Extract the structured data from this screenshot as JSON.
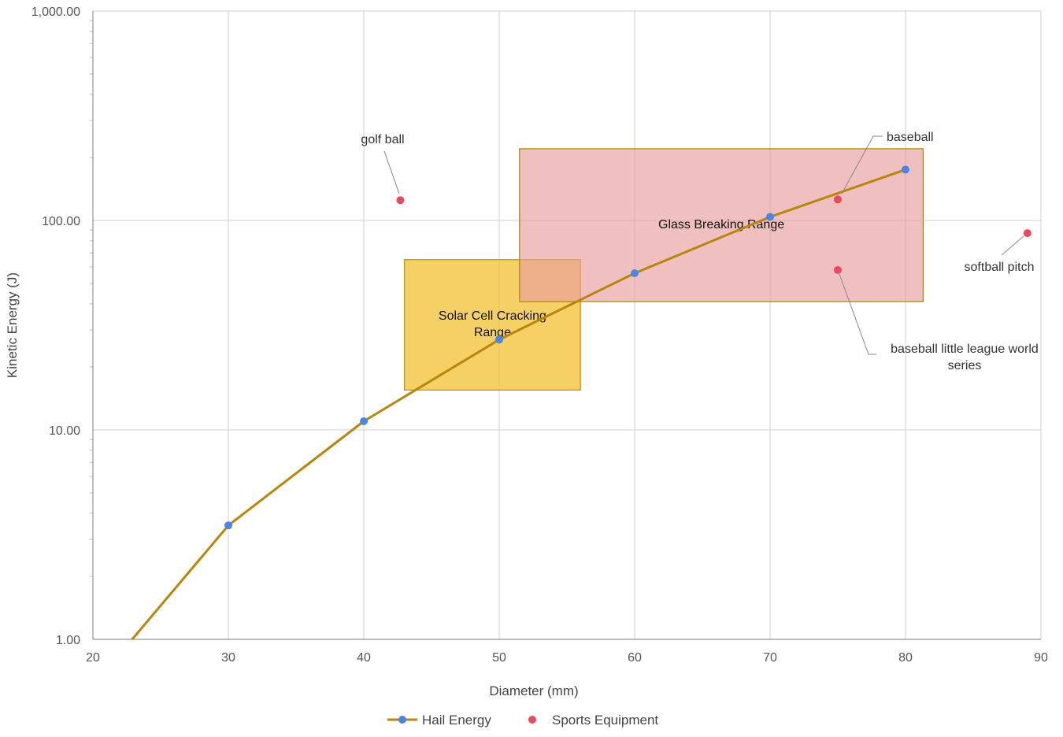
{
  "chart_data": {
    "type": "line",
    "xlabel": "Diameter (mm)",
    "ylabel": "Kinetic Energy (J)",
    "xlim": [
      20,
      90
    ],
    "ylim": [
      1,
      1000
    ],
    "yscale": "log",
    "grid": true,
    "x_ticks": [
      "20",
      "30",
      "40",
      "50",
      "60",
      "70",
      "80",
      "90"
    ],
    "y_ticks": [
      "1.00",
      "10.00",
      "100.00",
      "1,000.00"
    ],
    "series": [
      {
        "name": "Hail Energy",
        "type": "line",
        "color": "#b8860b",
        "marker_color": "#4a86e8",
        "points": [
          {
            "x": 20,
            "y": 0.6
          },
          {
            "x": 30,
            "y": 3.5
          },
          {
            "x": 40,
            "y": 11
          },
          {
            "x": 50,
            "y": 27
          },
          {
            "x": 60,
            "y": 56
          },
          {
            "x": 70,
            "y": 104
          },
          {
            "x": 80,
            "y": 175
          }
        ]
      },
      {
        "name": "Sports Equipment",
        "type": "scatter",
        "color": "#e84a5f",
        "points": [
          {
            "x": 42.7,
            "y": 125
          },
          {
            "x": 75,
            "y": 126
          },
          {
            "x": 75,
            "y": 58
          },
          {
            "x": 89,
            "y": 87
          }
        ]
      }
    ],
    "regions": [
      {
        "label": "Solar Cell Cracking Range",
        "lines": [
          "Solar Cell Cracking",
          "Range"
        ],
        "x": [
          43,
          56
        ],
        "y": [
          15.5,
          65
        ],
        "fill": "#f1c232",
        "border": "#c69214",
        "opacity": 0.75
      },
      {
        "label": "Glass Breaking Range",
        "lines": [
          "Glass Breaking Range"
        ],
        "x": [
          51.5,
          81.3
        ],
        "y": [
          41,
          220
        ],
        "fill": "#e89e9e",
        "border": "#b8860b",
        "opacity": 0.65
      }
    ],
    "annotations": [
      {
        "lines": [
          "golf ball"
        ],
        "point_index": 0
      },
      {
        "lines": [
          "baseball"
        ],
        "point_index": 1
      },
      {
        "lines": [
          "baseball little league world",
          "series"
        ],
        "point_index": 2
      },
      {
        "lines": [
          "softball pitch"
        ],
        "point_index": 3
      }
    ],
    "legend": {
      "position": "bottom",
      "items": [
        {
          "label": "Hail Energy",
          "kind": "line"
        },
        {
          "label": "Sports Equipment",
          "kind": "dot"
        }
      ]
    }
  }
}
